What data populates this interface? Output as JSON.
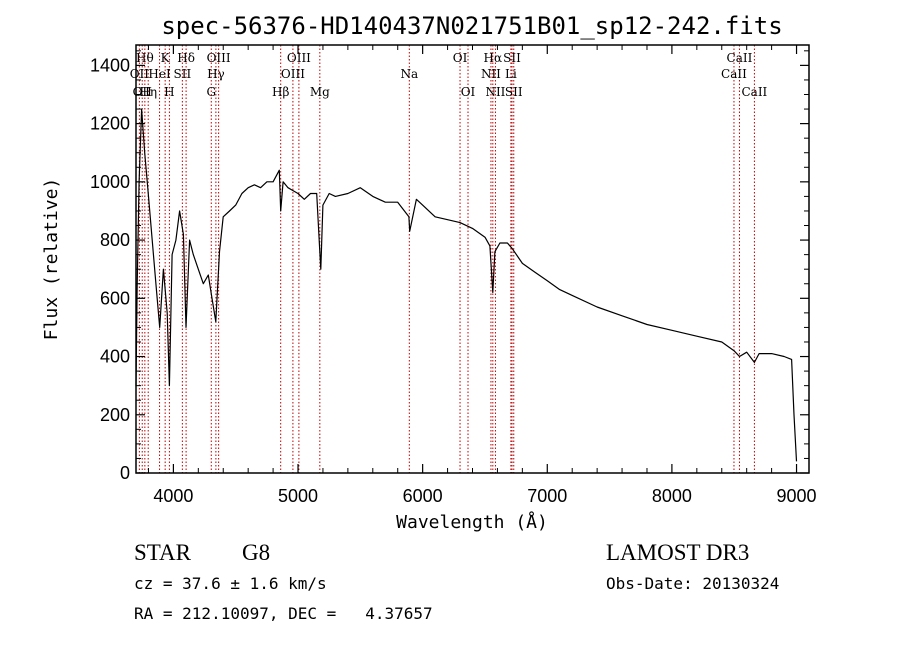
{
  "chart_data": {
    "type": "line",
    "title": "spec-56376-HD140437N021751B01_sp12-242.fits",
    "xlabel": "Wavelength (Å)",
    "ylabel": "Flux (relative)",
    "xlim": [
      3700,
      9100
    ],
    "ylim": [
      0,
      1470
    ],
    "xticks": [
      4000,
      5000,
      6000,
      7000,
      8000,
      9000
    ],
    "yticks": [
      0,
      200,
      400,
      600,
      800,
      1000,
      1200,
      1400
    ],
    "series": [
      {
        "name": "spectrum",
        "x": [
          3700,
          3710,
          3725,
          3745,
          3770,
          3800,
          3830,
          3860,
          3890,
          3920,
          3950,
          3968,
          3990,
          4020,
          4050,
          4080,
          4101,
          4130,
          4160,
          4200,
          4240,
          4280,
          4310,
          4340,
          4370,
          4400,
          4450,
          4500,
          4550,
          4600,
          4650,
          4700,
          4750,
          4800,
          4850,
          4861,
          4880,
          4920,
          4960,
          5000,
          5050,
          5100,
          5150,
          5172,
          5183,
          5200,
          5250,
          5300,
          5400,
          5500,
          5600,
          5700,
          5800,
          5890,
          5896,
          5950,
          6000,
          6100,
          6200,
          6300,
          6400,
          6500,
          6540,
          6563,
          6580,
          6620,
          6680,
          6720,
          6800,
          6900,
          7000,
          7100,
          7200,
          7400,
          7600,
          7800,
          8000,
          8200,
          8400,
          8498,
          8542,
          8600,
          8662,
          8700,
          8800,
          8900,
          8960,
          8980,
          9000
        ],
        "y": [
          300,
          650,
          1000,
          1250,
          1100,
          950,
          800,
          650,
          500,
          700,
          550,
          300,
          750,
          800,
          900,
          820,
          500,
          800,
          750,
          700,
          650,
          680,
          600,
          520,
          760,
          880,
          900,
          920,
          960,
          980,
          990,
          980,
          1000,
          1000,
          1040,
          900,
          1000,
          980,
          970,
          960,
          940,
          960,
          960,
          780,
          700,
          920,
          960,
          950,
          960,
          980,
          950,
          930,
          930,
          880,
          830,
          940,
          920,
          880,
          870,
          860,
          840,
          810,
          780,
          620,
          760,
          790,
          790,
          770,
          720,
          690,
          660,
          630,
          610,
          570,
          540,
          510,
          490,
          470,
          450,
          420,
          400,
          415,
          380,
          410,
          410,
          400,
          390,
          200,
          40
        ]
      }
    ],
    "line_markers": [
      {
        "wl": 3727,
        "label": "OII",
        "row": 2
      },
      {
        "wl": 3750,
        "label": "OII",
        "row": 3
      },
      {
        "wl": 3771,
        "label": "Hθ",
        "row": 1
      },
      {
        "wl": 3798,
        "label": "Hη",
        "row": 3
      },
      {
        "wl": 3889,
        "label": "HeI",
        "row": 2
      },
      {
        "wl": 3934,
        "label": "K",
        "row": 1
      },
      {
        "wl": 3968,
        "label": "H",
        "row": 3
      },
      {
        "wl": 4072,
        "label": "SII",
        "row": 2
      },
      {
        "wl": 4102,
        "label": "Hδ",
        "row": 1
      },
      {
        "wl": 4304,
        "label": "G",
        "row": 3
      },
      {
        "wl": 4341,
        "label": "Hγ",
        "row": 2
      },
      {
        "wl": 4363,
        "label": "OIII",
        "row": 1
      },
      {
        "wl": 4861,
        "label": "Hβ",
        "row": 3
      },
      {
        "wl": 4959,
        "label": "OIII",
        "row": 2
      },
      {
        "wl": 5007,
        "label": "OIII",
        "row": 1
      },
      {
        "wl": 5175,
        "label": "Mg",
        "row": 3
      },
      {
        "wl": 5893,
        "label": "Na",
        "row": 2
      },
      {
        "wl": 6300,
        "label": "OI",
        "row": 1
      },
      {
        "wl": 6364,
        "label": "OI",
        "row": 3
      },
      {
        "wl": 6548,
        "label": "NII",
        "row": 2
      },
      {
        "wl": 6563,
        "label": "Hα",
        "row": 1
      },
      {
        "wl": 6584,
        "label": "NII",
        "row": 3
      },
      {
        "wl": 6708,
        "label": "Li",
        "row": 2
      },
      {
        "wl": 6717,
        "label": "SII",
        "row": 1
      },
      {
        "wl": 6731,
        "label": "SII",
        "row": 3
      },
      {
        "wl": 8498,
        "label": "CaII",
        "row": 2
      },
      {
        "wl": 8542,
        "label": "CaII",
        "row": 1
      },
      {
        "wl": 8662,
        "label": "CaII",
        "row": 3
      }
    ]
  },
  "info": {
    "object_class": "STAR",
    "subclass": "G8",
    "survey": "LAMOST DR3",
    "redshift": "cz = 37.6 ± 1.6 km/s",
    "obs_date": "Obs-Date: 20130324",
    "coords": "RA = 212.10097, DEC =   4.37657"
  },
  "colors": {
    "axis": "#000000",
    "marker": "#c00000",
    "spectrum": "#000000"
  }
}
